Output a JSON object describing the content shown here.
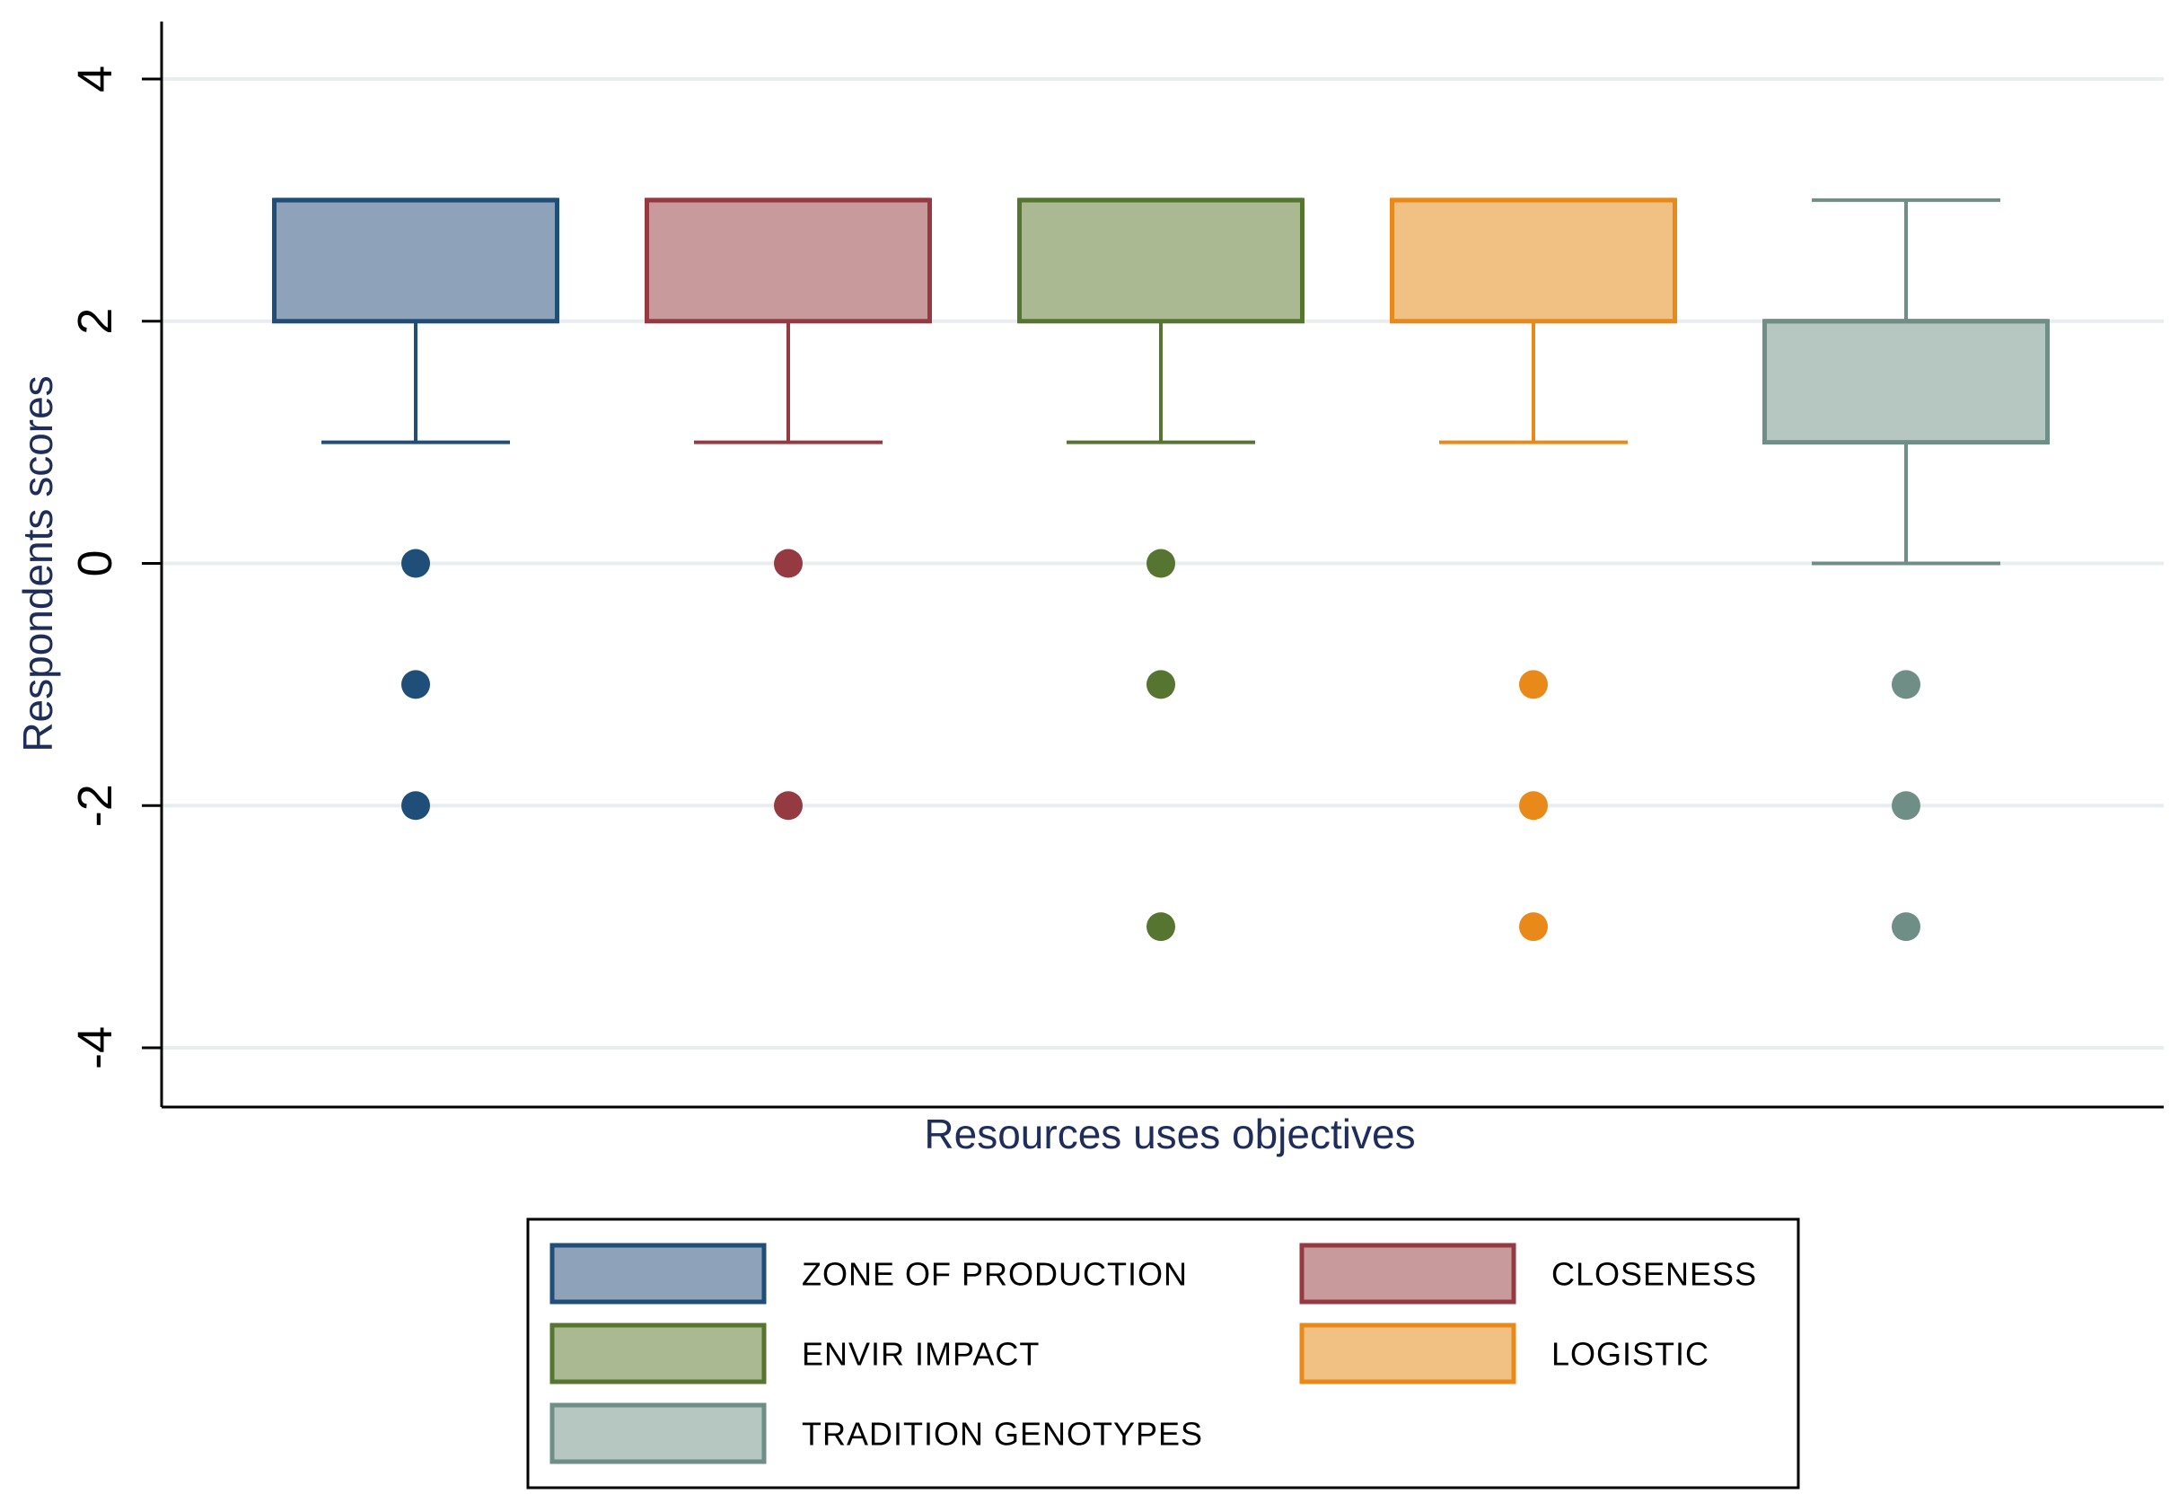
{
  "chart_data": {
    "type": "box",
    "title": "",
    "xlabel": "Resources uses objectives",
    "ylabel": "Respondents scores",
    "ylim": [
      -4.5,
      4.5
    ],
    "yticks": [
      {
        "value": 4,
        "label": "4"
      },
      {
        "value": 2,
        "label": "2"
      },
      {
        "value": 0,
        "label": "0"
      },
      {
        "value": -2,
        "label": "-2"
      },
      {
        "value": -4,
        "label": "-4"
      }
    ],
    "grid": true,
    "legend_position": "bottom",
    "series": [
      {
        "name": "ZONE OF PRODUCTION",
        "stroke": "#1f4e79",
        "fill": "#8ea3b9",
        "whisker_low": 1,
        "q1": 2,
        "median": 3,
        "q3": 3,
        "whisker_high": 3,
        "outliers": [
          0,
          -1,
          -2
        ]
      },
      {
        "name": "CLOSENESS",
        "stroke": "#963a42",
        "fill": "#c99a9c",
        "whisker_low": 1,
        "q1": 2,
        "median": 3,
        "q3": 3,
        "whisker_high": 3,
        "outliers": [
          0,
          -2
        ]
      },
      {
        "name": "ENVIR IMPACT",
        "stroke": "#557530",
        "fill": "#aab992",
        "whisker_low": 1,
        "q1": 2,
        "median": 3,
        "q3": 3,
        "whisker_high": 3,
        "outliers": [
          0,
          -1,
          -3
        ]
      },
      {
        "name": "LOGISTIC",
        "stroke": "#e8891a",
        "fill": "#f1c083",
        "whisker_low": 1,
        "q1": 2,
        "median": 3,
        "q3": 3,
        "whisker_high": 3,
        "outliers": [
          -1,
          -2,
          -3
        ]
      },
      {
        "name": "TRADITION GENOTYPES",
        "stroke": "#6e8e86",
        "fill": "#b6c7c1",
        "whisker_low": 0,
        "q1": 1,
        "median": 2,
        "q3": 2,
        "whisker_high": 3,
        "outliers": [
          -1,
          -2,
          -3
        ]
      }
    ]
  }
}
